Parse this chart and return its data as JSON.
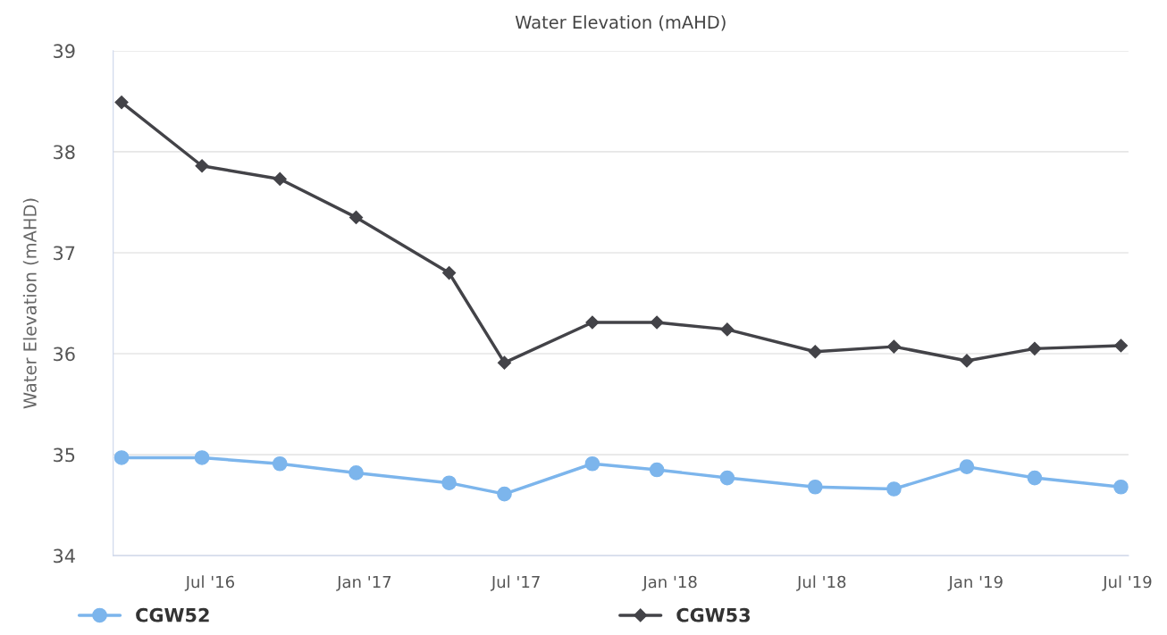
{
  "chart_data": {
    "type": "line",
    "title": "Water Elevation (mAHD)",
    "ylabel": "Water Elevation (mAHD)",
    "xlim": [
      "2016-03-07",
      "2019-07-02"
    ],
    "xticks": [
      {
        "value": "2016-07-01",
        "label": "Jul '16"
      },
      {
        "value": "2017-01-01",
        "label": "Jan '17"
      },
      {
        "value": "2017-07-01",
        "label": "Jul '17"
      },
      {
        "value": "2018-01-01",
        "label": "Jan '18"
      },
      {
        "value": "2018-07-01",
        "label": "Jul '18"
      },
      {
        "value": "2019-01-01",
        "label": "Jan '19"
      },
      {
        "value": "2019-07-01",
        "label": "Jul '19"
      }
    ],
    "ylim": [
      34,
      39
    ],
    "yticks": [
      34,
      35,
      36,
      37,
      38,
      39
    ],
    "grid": "y",
    "legend": "bottom",
    "line_style": "solid",
    "x": [
      "2016-03-17",
      "2016-06-21",
      "2016-09-22",
      "2016-12-22",
      "2017-04-12",
      "2017-06-17",
      "2017-09-30",
      "2017-12-16",
      "2018-03-10",
      "2018-06-23",
      "2018-09-25",
      "2018-12-21",
      "2019-03-12",
      "2019-06-23"
    ],
    "series": [
      {
        "name": "CGW52",
        "color": "#7cb5ec",
        "marker": "circle",
        "values": [
          34.97,
          34.97,
          34.91,
          34.82,
          34.72,
          34.61,
          34.91,
          34.85,
          34.77,
          34.68,
          34.66,
          34.88,
          34.77,
          34.68
        ]
      },
      {
        "name": "CGW53",
        "color": "#434348",
        "marker": "diamond",
        "values": [
          38.49,
          37.86,
          37.73,
          37.35,
          36.8,
          35.91,
          36.31,
          36.31,
          36.24,
          36.02,
          36.07,
          35.93,
          36.05,
          36.08
        ]
      }
    ]
  }
}
